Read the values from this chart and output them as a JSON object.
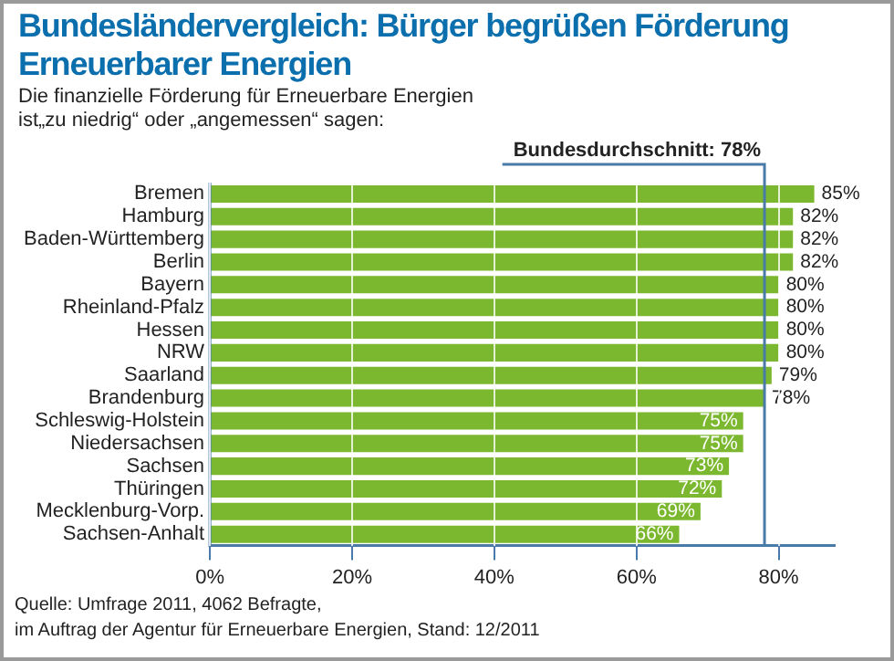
{
  "chart_data": {
    "type": "bar",
    "orientation": "horizontal",
    "title": "Bundesländervergleich: Bürger begrüßen Förderung Erneuerbarer Energien",
    "subtitle": "Die finanzielle Förderung für Erneuerbare Energien ist„zu niedrig“ oder „angemessen“ sagen:",
    "categories": [
      "Bremen",
      "Hamburg",
      "Baden-Württemberg",
      "Berlin",
      "Bayern",
      "Rheinland-Pfalz",
      "Hessen",
      "NRW",
      "Saarland",
      "Brandenburg",
      "Schleswig-Holstein",
      "Niedersachsen",
      "Sachsen",
      "Thüringen",
      "Mecklenburg-Vorp.",
      "Sachsen-Anhalt"
    ],
    "values": [
      85,
      82,
      82,
      82,
      80,
      80,
      80,
      80,
      79,
      78,
      75,
      75,
      73,
      72,
      69,
      66
    ],
    "color": "#7cb82f",
    "xlim": [
      0,
      88
    ],
    "xticks": [
      {
        "value": 0,
        "label": "0%"
      },
      {
        "value": 20,
        "label": "20%"
      },
      {
        "value": 40,
        "label": "40%"
      },
      {
        "value": 60,
        "label": "60%"
      },
      {
        "value": 80,
        "label": "80%"
      }
    ],
    "value_labels": [
      "85%",
      "82%",
      "82%",
      "82%",
      "80%",
      "80%",
      "80%",
      "80%",
      "79%",
      "78%",
      "75%",
      "75%",
      "73%",
      "72%",
      "69%",
      "66%"
    ],
    "grid": "x",
    "legend": false,
    "ref_lines": [
      {
        "axis": "x",
        "value": 78,
        "label": "Bundesdurchschnitt: 78%",
        "color": "#4a7aa8"
      }
    ],
    "annotations": [
      "Quelle: Umfrage 2011, 4062 Befragte,",
      "im Auftrag der Agentur für Erneuerbare Energien, Stand: 12/2011"
    ]
  }
}
